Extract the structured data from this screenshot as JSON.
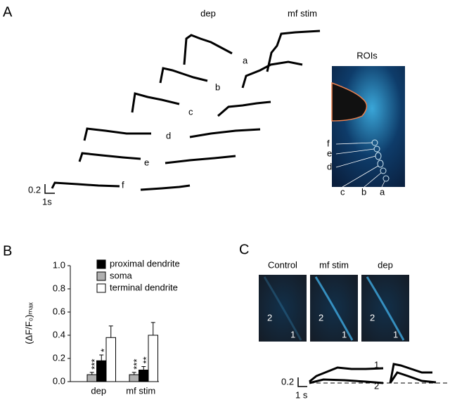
{
  "panels": [
    "A",
    "B",
    "C"
  ],
  "panel_a": {
    "titles": [
      "dep",
      "mf stim"
    ],
    "trace_labels": [
      "a",
      "b",
      "c",
      "d",
      "e",
      "f"
    ],
    "scale_y": "0.2",
    "scale_x": "1s",
    "rois_title": "ROIs",
    "roi_labels": [
      "f",
      "e",
      "d",
      "c",
      "b",
      "a"
    ]
  },
  "chart_data": {
    "type": "bar",
    "y_label": "(ΔF/F₀)ₘₐₓ",
    "categories": [
      "dep",
      "mf stim"
    ],
    "series": [
      {
        "name": "soma",
        "color": "#b0b0b0",
        "values": [
          0.06,
          0.06
        ],
        "errors": [
          0.02,
          0.02
        ],
        "annotations": [
          "***",
          "***"
        ]
      },
      {
        "name": "proximal dendrite",
        "color": "#000000",
        "values": [
          0.18,
          0.1
        ],
        "errors": [
          0.05,
          0.03
        ],
        "annotations": [
          "*",
          "**"
        ]
      },
      {
        "name": "terminal dendrite",
        "color": "#ffffff",
        "values": [
          0.38,
          0.4
        ],
        "errors": [
          0.1,
          0.11
        ],
        "annotations": [
          null,
          null
        ]
      }
    ],
    "legend_order": [
      1,
      0,
      2
    ],
    "ylim": [
      0,
      1
    ],
    "yticks": [
      {
        "value": 0,
        "label": "0.0"
      },
      {
        "value": 0.2,
        "label": "0.2"
      },
      {
        "value": 0.4,
        "label": "0.4"
      },
      {
        "value": 0.6,
        "label": "0.6"
      },
      {
        "value": 0.8,
        "label": "0.8"
      },
      {
        "value": 1,
        "label": "1.0"
      }
    ]
  },
  "panel_c": {
    "titles": [
      "Control",
      "mf stim",
      "dep"
    ],
    "image_labels": [
      "2",
      "1"
    ],
    "trace_labels": [
      "1",
      "2"
    ],
    "scale_y": "0.2",
    "scale_x": "1 s"
  }
}
